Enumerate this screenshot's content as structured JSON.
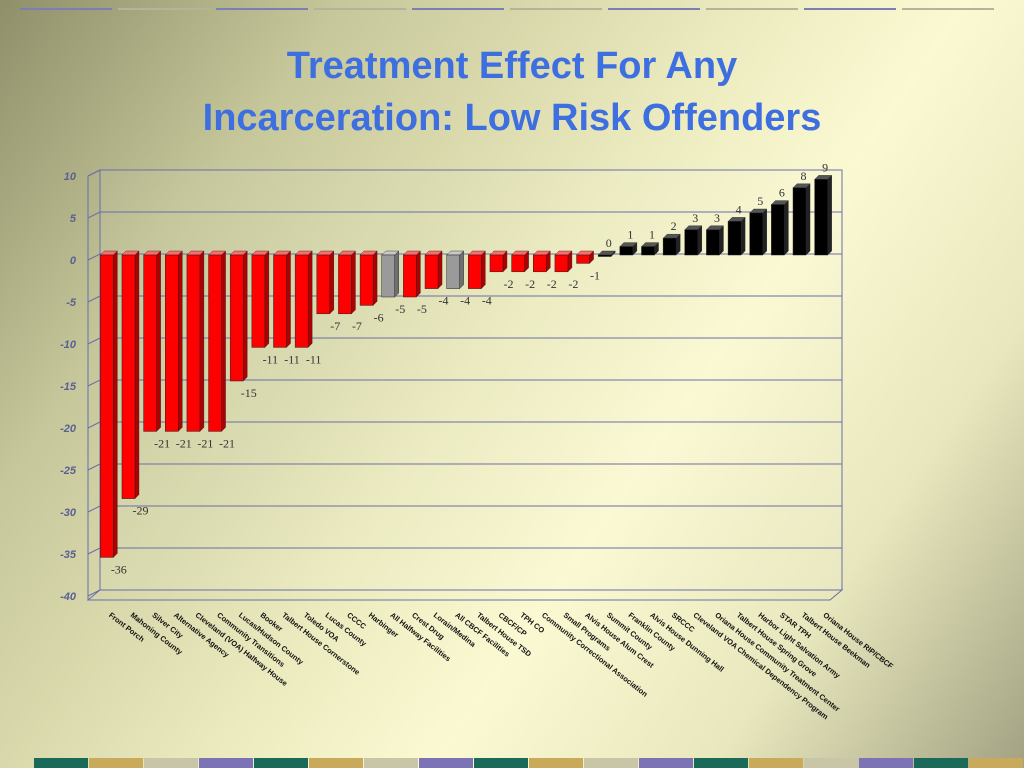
{
  "title_line1": "Treatment Effect For Any",
  "title_line2": "Incarceration: Low Risk Offenders",
  "colors": {
    "title": "#3e6fe0",
    "negative_bar": "#ff0000",
    "neutral_bar": "#9a9a9a",
    "positive_bar": "#000000",
    "axis": "#6a6ea8"
  },
  "chart_data": {
    "type": "bar",
    "title": "Treatment Effect For Any Incarceration: Low Risk Offenders",
    "xlabel": "",
    "ylabel": "",
    "ylim": [
      -40,
      10
    ],
    "yticks": [
      10,
      5,
      0,
      -5,
      -10,
      -15,
      -20,
      -25,
      -30,
      -35,
      -40
    ],
    "grid": true,
    "legend": "none",
    "categories": [
      "Front Porch",
      "Mahoning County",
      "Silver City",
      "Alternative Agency",
      "Cleveland (VOA) Halfway House",
      "Community Transitions",
      "Lucas/Hudson County",
      "Booker",
      "Talbert House Cornerstone",
      "Toledo VOA",
      "Lucas County",
      "CCCC",
      "Harbinger",
      "All Halfway Facilities",
      "Crest Drug",
      "Lorain/Medina",
      "All CBCF Facilities",
      "Talbert House TSD",
      "CBCF/CP",
      "TPH CO",
      "Community Correctional Association",
      "Small Programs",
      "Alvis House Alum Crest",
      "Summit County",
      "Franklin County",
      "Alvis House Dunning Hall",
      "SRCCC",
      "Cleveland VOA Chemical Dependency Program",
      "Oriana House Community Treatment Center",
      "Talbert House Spring Grove",
      "Harbor Light Salvation Army",
      "STAR TPH",
      "Talbert House Beekman",
      "Oriana House RIP/CBCF"
    ],
    "values": [
      -36,
      -29,
      -21,
      -21,
      -21,
      -21,
      -15,
      -11,
      -11,
      -11,
      -7,
      -7,
      -6,
      -5,
      -5,
      -4,
      -4,
      -4,
      -2,
      -2,
      -2,
      -2,
      -1,
      0,
      1,
      1,
      2,
      3,
      3,
      4,
      5,
      6,
      8,
      9
    ],
    "bar_colors": [
      "red",
      "red",
      "red",
      "red",
      "red",
      "red",
      "red",
      "red",
      "red",
      "red",
      "red",
      "red",
      "red",
      "gray",
      "red",
      "red",
      "gray",
      "red",
      "red",
      "red",
      "red",
      "red",
      "red",
      "black",
      "black",
      "black",
      "black",
      "black",
      "black",
      "black",
      "black",
      "black",
      "black",
      "black"
    ],
    "data_labels": [
      "-36",
      "-29",
      "-21",
      "-21",
      "-21",
      "-21",
      "-15",
      "-11",
      "-11",
      "-11",
      "-7",
      "-7",
      "-6",
      "-5",
      "-5",
      "-4",
      "-4",
      "-4",
      "-2",
      "-2",
      "-2",
      "-2",
      "-1",
      "0",
      "1",
      "1",
      "2",
      "3",
      "3",
      "4",
      "5",
      "6",
      "8",
      "9"
    ]
  }
}
